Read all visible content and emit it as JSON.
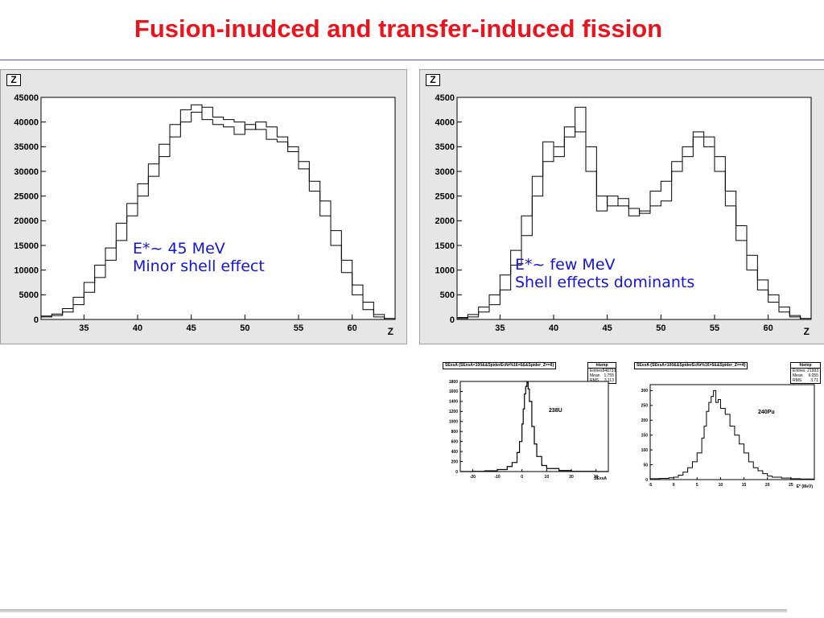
{
  "slide": {
    "title": "Fusion-inudced and transfer-induced fission"
  },
  "colors": {
    "title": "#e8141e",
    "annotation": "#1414d2",
    "rule": "#5060c8",
    "panel": "#e6e6e6"
  },
  "chart_data": [
    {
      "type": "bar",
      "style": "step-histogram",
      "box_label": "Z",
      "xlabel": "Z",
      "xlim": [
        31,
        64
      ],
      "ylim": [
        0,
        45000
      ],
      "xticks": [
        "35",
        "40",
        "45",
        "50",
        "55",
        "60"
      ],
      "yticks": [
        "0",
        "5000",
        "10000",
        "15000",
        "20000",
        "25000",
        "30000",
        "35000",
        "40000",
        "45000"
      ],
      "annotation": [
        "E*~ 45 MeV",
        "Minor shell effect"
      ],
      "x": [
        31,
        32,
        33,
        34,
        35,
        36,
        37,
        38,
        39,
        40,
        41,
        42,
        43,
        44,
        45,
        46,
        47,
        48,
        49,
        50,
        51,
        52,
        53,
        54,
        55,
        56,
        57,
        58,
        59,
        60,
        61,
        62,
        63
      ],
      "series": [
        {
          "values": [
            500,
            800,
            1500,
            3000,
            5500,
            8500,
            12000,
            16000,
            21000,
            25000,
            29000,
            33000,
            37000,
            40000,
            42000,
            43000,
            41000,
            40500,
            40000,
            38500,
            40000,
            39000,
            37000,
            35000,
            32000,
            28000,
            24000,
            18000,
            12000,
            7000,
            3500,
            1000,
            200
          ]
        },
        {
          "values": [
            700,
            1100,
            2200,
            4500,
            7500,
            11000,
            14500,
            19500,
            23500,
            27500,
            31500,
            35500,
            39500,
            42500,
            43500,
            40500,
            39500,
            39000,
            37500,
            39500,
            38500,
            36500,
            36000,
            34000,
            30500,
            26000,
            21000,
            15000,
            9500,
            5000,
            2000,
            500,
            0
          ]
        }
      ]
    },
    {
      "type": "bar",
      "style": "step-histogram",
      "box_label": "Z",
      "xlabel": "Z",
      "xlim": [
        31,
        64
      ],
      "ylim": [
        0,
        4500
      ],
      "xticks": [
        "35",
        "40",
        "45",
        "50",
        "55",
        "60"
      ],
      "yticks": [
        "0",
        "500",
        "1000",
        "1500",
        "2000",
        "2500",
        "3000",
        "3500",
        "4000",
        "4500"
      ],
      "annotation": [
        "E*~ few MeV",
        "Shell effects dominants"
      ],
      "x": [
        31,
        32,
        33,
        34,
        35,
        36,
        37,
        38,
        39,
        40,
        41,
        42,
        43,
        44,
        45,
        46,
        47,
        48,
        49,
        50,
        51,
        52,
        53,
        54,
        55,
        56,
        57,
        58,
        59,
        60,
        61,
        62,
        63
      ],
      "series": [
        {
          "values": [
            20,
            50,
            150,
            300,
            600,
            1100,
            1700,
            2500,
            3200,
            3500,
            3700,
            4300,
            3500,
            2500,
            2300,
            2450,
            2250,
            2150,
            2300,
            2400,
            3000,
            3300,
            3700,
            3700,
            3300,
            2600,
            1900,
            1300,
            800,
            500,
            250,
            80,
            20
          ]
        },
        {
          "values": [
            40,
            100,
            250,
            500,
            900,
            1400,
            2100,
            2900,
            3600,
            3300,
            3900,
            3800,
            3000,
            2200,
            2500,
            2300,
            2100,
            2200,
            2600,
            2800,
            3200,
            3500,
            3800,
            3500,
            3000,
            2300,
            1600,
            1000,
            600,
            350,
            150,
            50,
            0
          ]
        }
      ]
    },
    {
      "type": "line",
      "style": "step-histogram",
      "title": "SExsA {SExsA<100&&SpiderEcNr%16>6&&Spider_Z==6}",
      "stats": {
        "name": "htemp",
        "rows": [
          [
            "Entries",
            "848733"
          ],
          [
            "Mean",
            "1.755"
          ],
          [
            "RMS",
            "3.113"
          ]
        ]
      },
      "label": "238U",
      "xlabel": "SExsA",
      "xlim": [
        -25,
        35
      ],
      "ylim": [
        0,
        1800
      ],
      "xticks": [
        "-20",
        "-10",
        "0",
        "10",
        "20",
        "30"
      ],
      "yticks": [
        "0",
        "200",
        "400",
        "600",
        "800",
        "1000",
        "1200",
        "1400",
        "1600",
        "1800"
      ],
      "x": [
        -25,
        -20,
        -15,
        -10,
        -6,
        -4,
        -2,
        -1,
        0,
        0.5,
        1,
        1.5,
        2,
        2.5,
        3,
        4,
        5,
        6,
        8,
        10,
        15,
        20,
        30,
        35
      ],
      "series": [
        {
          "values": [
            0,
            5,
            15,
            40,
            100,
            180,
            380,
            600,
            950,
            1250,
            1550,
            1700,
            1780,
            1650,
            1400,
            900,
            550,
            300,
            120,
            60,
            20,
            5,
            0,
            0
          ]
        }
      ]
    },
    {
      "type": "line",
      "style": "step-histogram",
      "title": "SExsA {SExsA<100&&SpiderEcNr%16>6&&Spider_Z==4}",
      "stats": {
        "name": "htemp",
        "rows": [
          [
            "Entries",
            "21993"
          ],
          [
            "Mean",
            "9.055"
          ],
          [
            "RMS",
            "3.71"
          ]
        ]
      },
      "label": "240Pu",
      "xlabel": "E* (MeV)",
      "xlim": [
        -5,
        30
      ],
      "ylim": [
        0,
        320
      ],
      "xticks": [
        "-5",
        "0",
        "5",
        "10",
        "15",
        "20",
        "25"
      ],
      "yticks": [
        "0",
        "50",
        "100",
        "150",
        "200",
        "250",
        "300"
      ],
      "x": [
        -5,
        -3,
        -1,
        0,
        1,
        2,
        3,
        4,
        5,
        6,
        6.5,
        7,
        7.5,
        8,
        8.5,
        9,
        9.5,
        10,
        11,
        12,
        13,
        14,
        15,
        16,
        17,
        18,
        19,
        20,
        21,
        23,
        25,
        27,
        30
      ],
      "series": [
        {
          "values": [
            3,
            4,
            6,
            8,
            15,
            25,
            40,
            60,
            90,
            140,
            180,
            230,
            260,
            280,
            300,
            260,
            270,
            240,
            220,
            180,
            150,
            120,
            90,
            60,
            40,
            30,
            20,
            12,
            8,
            5,
            3,
            2,
            0
          ]
        }
      ]
    }
  ]
}
